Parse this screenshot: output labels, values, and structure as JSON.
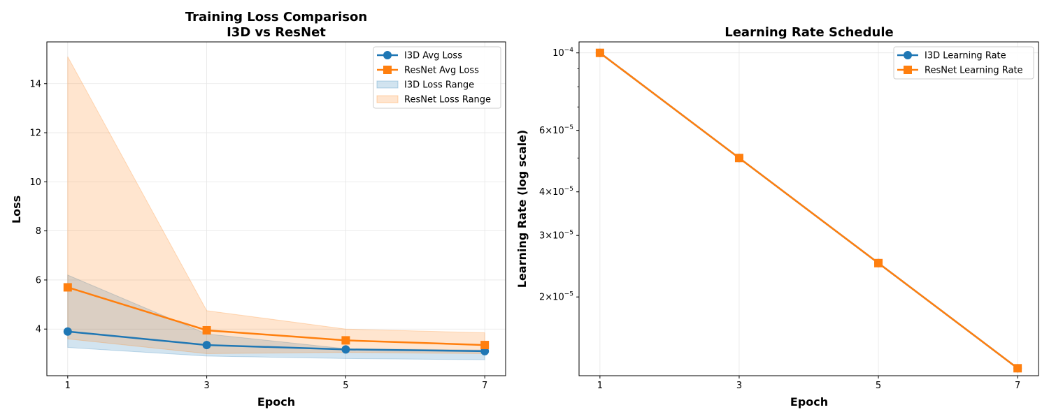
{
  "chart_data": [
    {
      "type": "line",
      "title_line1": "Training Loss Comparison",
      "title_line2": "I3D vs ResNet",
      "xlabel": "Epoch",
      "ylabel": "Loss",
      "x": [
        1,
        3,
        5,
        7
      ],
      "xlim": [
        0.7,
        7.3
      ],
      "ylim": [
        2.1,
        15.7
      ],
      "yticks": [
        4,
        6,
        8,
        10,
        12,
        14
      ],
      "grid": true,
      "legend_position": "top-right",
      "series": [
        {
          "name": "I3D Avg Loss",
          "color": "#1f77b4",
          "marker": "circle",
          "values": [
            3.9,
            3.35,
            3.17,
            3.1
          ]
        },
        {
          "name": "ResNet Avg Loss",
          "color": "#ff7f0e",
          "marker": "square",
          "values": [
            5.7,
            3.95,
            3.54,
            3.35
          ]
        }
      ],
      "ranges": [
        {
          "name": "I3D Loss Range",
          "color": "#1f77b4",
          "low": [
            3.25,
            2.9,
            2.8,
            2.75
          ],
          "high": [
            6.2,
            3.8,
            3.2,
            3.15
          ]
        },
        {
          "name": "ResNet Loss Range",
          "color": "#ff7f0e",
          "low": [
            3.6,
            3.0,
            3.05,
            3.0
          ],
          "high": [
            15.1,
            4.75,
            4.0,
            3.85
          ]
        }
      ]
    },
    {
      "type": "line",
      "title": "Learning Rate Schedule",
      "xlabel": "Epoch",
      "ylabel": "Learning Rate (log scale)",
      "x": [
        1,
        3,
        5,
        7
      ],
      "xlim": [
        0.7,
        7.3
      ],
      "ylim": [
        1.19e-05,
        0.0001075
      ],
      "yscale": "log",
      "yticks": [
        {
          "value": 0.0001,
          "mantissa": "",
          "exponent": "−4"
        },
        {
          "value": 6e-05,
          "mantissa": "6",
          "exponent": "−5"
        },
        {
          "value": 4e-05,
          "mantissa": "4",
          "exponent": "−5"
        },
        {
          "value": 3e-05,
          "mantissa": "3",
          "exponent": "−5"
        },
        {
          "value": 2e-05,
          "mantissa": "2",
          "exponent": "−5"
        }
      ],
      "grid": true,
      "legend_position": "top-right",
      "series": [
        {
          "name": "I3D Learning Rate",
          "color": "#1f77b4",
          "marker": "circle",
          "values": [
            0.0001,
            5e-05,
            2.5e-05,
            1.25e-05
          ]
        },
        {
          "name": "ResNet Learning Rate",
          "color": "#ff7f0e",
          "marker": "square",
          "values": [
            0.0001,
            5e-05,
            2.5e-05,
            1.25e-05
          ]
        }
      ]
    }
  ]
}
